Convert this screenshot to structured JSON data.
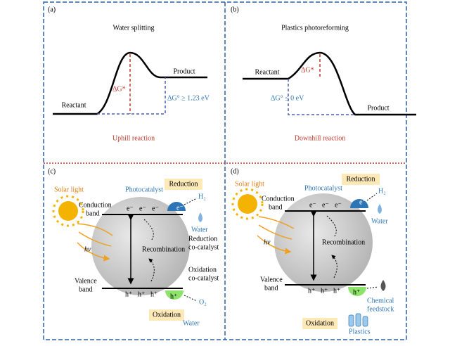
{
  "a": {
    "label": "(a)",
    "title": "Water splitting",
    "reactant": "Reactant",
    "product": "Product",
    "barrier": "ΔG*",
    "energy": "ΔG° ≥ 1.23 eV",
    "caption": "Uphill reaction"
  },
  "b": {
    "label": "(b)",
    "title": "Plastics photoreforming",
    "reactant": "Reactant",
    "product": "Product",
    "barrier": "ΔG*",
    "energy": "ΔG° ≤ 0 eV",
    "caption": "Downhill reaction"
  },
  "c": {
    "label": "(c)",
    "solar": "Solar light",
    "hv": "hν",
    "photocatalyst": "Photocatalyst",
    "reduction": "Reduction",
    "oxidation": "Oxidation",
    "cb": [
      "Conduction",
      "band"
    ],
    "vb": [
      "Valence",
      "band"
    ],
    "electrons": [
      "e⁻",
      "e⁻",
      "e⁻"
    ],
    "holes": [
      "h⁺",
      "h⁺",
      "h⁺"
    ],
    "cocat_e": "e⁻",
    "cocat_h": "h⁺",
    "recombination": "Recombination",
    "h2": "H₂",
    "water_top": "Water",
    "red_cocat": [
      "Reduction",
      "co-catalyst"
    ],
    "ox_cocat": [
      "Oxidation",
      "co-catalyst"
    ],
    "o2": "O₂",
    "water_bottom": "Water"
  },
  "d": {
    "label": "(d)",
    "solar": "Solar light",
    "hv": "hν",
    "photocatalyst": "Photocatalyst",
    "reduction": "Reduction",
    "oxidation": "Oxidation",
    "cb": [
      "Conduction",
      "band"
    ],
    "vb": [
      "Valence",
      "band"
    ],
    "electrons": [
      "e⁻",
      "e⁻",
      "e⁻"
    ],
    "holes": [
      "h⁺",
      "h⁺",
      "h⁺"
    ],
    "cocat_e": "e⁻",
    "cocat_h": "h⁺",
    "recombination": "Recombination",
    "h2": "H₂",
    "water_top": "Water",
    "feedstock": [
      "Chemical",
      "feedstock"
    ],
    "plastics": "Plastics"
  }
}
